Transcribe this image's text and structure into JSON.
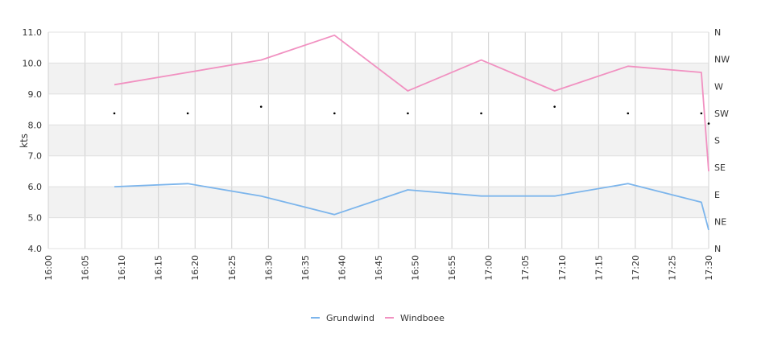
{
  "chart_data": {
    "type": "line",
    "ylabel": "kts",
    "ylim": [
      4.0,
      11.0
    ],
    "y_ticks": [
      "4.0",
      "5.0",
      "6.0",
      "7.0",
      "8.0",
      "9.0",
      "10.0",
      "11.0"
    ],
    "x_ticks": [
      "16:00",
      "16:05",
      "16:10",
      "16:15",
      "16:20",
      "16:25",
      "16:30",
      "16:35",
      "16:40",
      "16:45",
      "16:50",
      "16:55",
      "17:00",
      "17:05",
      "17:10",
      "17:15",
      "17:20",
      "17:25",
      "17:30"
    ],
    "xlim": [
      "16:00",
      "17:30"
    ],
    "direction_axis": {
      "labels": [
        "N",
        "NE",
        "E",
        "SE",
        "S",
        "SW",
        "W",
        "NW",
        "N"
      ],
      "range_deg": [
        0,
        360
      ]
    },
    "series": [
      {
        "name": "Grundwind",
        "color": "#7cb5ec",
        "x": [
          "16:09",
          "16:19",
          "16:29",
          "16:39",
          "16:49",
          "16:59",
          "17:09",
          "17:19",
          "17:29",
          "17:30"
        ],
        "values": [
          6.0,
          6.1,
          5.7,
          5.1,
          5.9,
          5.7,
          5.7,
          6.1,
          5.5,
          4.6
        ]
      },
      {
        "name": "Windboee",
        "color": "#f191c1",
        "x": [
          "16:09",
          "16:19",
          "16:29",
          "16:39",
          "16:49",
          "16:59",
          "17:09",
          "17:19",
          "17:29",
          "17:30"
        ],
        "values": [
          9.3,
          9.7,
          10.1,
          10.9,
          9.1,
          10.1,
          9.1,
          9.9,
          9.7,
          6.5
        ]
      }
    ],
    "direction_points": {
      "x": [
        "16:09",
        "16:19",
        "16:29",
        "16:39",
        "16:49",
        "16:59",
        "17:09",
        "17:19",
        "17:29",
        "17:30"
      ],
      "degrees": [
        225,
        225,
        236,
        225,
        225,
        225,
        236,
        225,
        225,
        208
      ]
    },
    "legend": {
      "position": "bottom-center"
    },
    "grid": true
  }
}
